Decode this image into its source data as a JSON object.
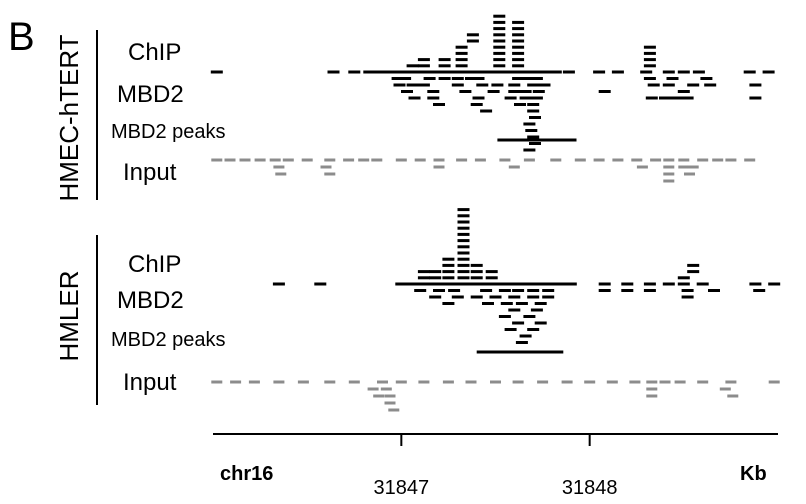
{
  "panel_label": "B",
  "groups": [
    {
      "cell_line": "HMEC-hTERT",
      "chip_label": [
        "ChIP",
        "MBD2"
      ],
      "peaks_label": "MBD2 peaks",
      "input_label": "Input",
      "peak_kb": [
        31847.51,
        31847.93
      ],
      "chip_reads": [
        [
          31846.02,
          0,
          21
        ],
        [
          31846.64,
          0,
          21
        ],
        [
          31846.75,
          0,
          21
        ],
        [
          31846.83,
          0,
          21
        ],
        [
          31846.88,
          0,
          21
        ],
        [
          31846.91,
          0,
          21
        ],
        [
          31846.95,
          0,
          21
        ],
        [
          31847.0,
          0,
          21
        ],
        [
          31847.04,
          0,
          21
        ],
        [
          31847.08,
          0,
          21
        ],
        [
          31847.12,
          0,
          21
        ],
        [
          31847.16,
          0,
          21
        ],
        [
          31847.2,
          0,
          21
        ],
        [
          31847.24,
          0,
          21
        ],
        [
          31847.28,
          0,
          21
        ],
        [
          31847.32,
          0,
          21
        ],
        [
          31847.36,
          0,
          21
        ],
        [
          31847.4,
          0,
          21
        ],
        [
          31847.44,
          0,
          21
        ],
        [
          31847.48,
          0,
          21
        ],
        [
          31847.52,
          0,
          21
        ],
        [
          31847.56,
          0,
          21
        ],
        [
          31847.6,
          0,
          21
        ],
        [
          31847.64,
          0,
          21
        ],
        [
          31847.68,
          0,
          21
        ],
        [
          31847.72,
          0,
          21
        ],
        [
          31847.76,
          0,
          21
        ],
        [
          31847.82,
          0,
          21
        ],
        [
          31847.89,
          0,
          21
        ],
        [
          31848.05,
          0,
          21
        ],
        [
          31848.15,
          0,
          21
        ],
        [
          31848.3,
          0,
          21
        ],
        [
          31848.42,
          0,
          21
        ],
        [
          31848.5,
          0,
          21
        ],
        [
          31848.58,
          0,
          21
        ],
        [
          31848.85,
          0,
          21
        ],
        [
          31848.95,
          0,
          21
        ],
        [
          31846.98,
          1,
          21
        ],
        [
          31847.02,
          1,
          21
        ],
        [
          31847.15,
          1,
          21
        ],
        [
          31847.23,
          1,
          21
        ],
        [
          31847.3,
          1,
          21
        ],
        [
          31847.37,
          1,
          21
        ],
        [
          31847.41,
          1,
          21
        ],
        [
          31847.62,
          1,
          21
        ],
        [
          31847.68,
          1,
          21
        ],
        [
          31847.72,
          1,
          21
        ],
        [
          31848.32,
          1,
          21
        ],
        [
          31848.44,
          1,
          21
        ],
        [
          31848.62,
          1,
          21
        ],
        [
          31846.99,
          2,
          21
        ],
        [
          31847.06,
          2,
          21
        ],
        [
          31847.12,
          2,
          21
        ],
        [
          31847.3,
          2,
          21
        ],
        [
          31847.43,
          2,
          21
        ],
        [
          31847.51,
          2,
          21
        ],
        [
          31847.6,
          2,
          21
        ],
        [
          31847.7,
          2,
          21
        ],
        [
          31847.76,
          2,
          21
        ],
        [
          31848.34,
          2,
          21
        ],
        [
          31848.42,
          2,
          21
        ],
        [
          31848.55,
          2,
          21
        ],
        [
          31848.64,
          2,
          21
        ],
        [
          31848.88,
          2,
          21
        ],
        [
          31847.03,
          3,
          21
        ],
        [
          31847.17,
          3,
          21
        ],
        [
          31847.34,
          3,
          21
        ],
        [
          31847.49,
          3,
          21
        ],
        [
          31847.6,
          3,
          21
        ],
        [
          31847.66,
          3,
          21
        ],
        [
          31847.73,
          3,
          21
        ],
        [
          31848.08,
          3,
          21
        ],
        [
          31848.5,
          3,
          21
        ],
        [
          31847.07,
          4,
          21
        ],
        [
          31847.17,
          4,
          21
        ],
        [
          31847.41,
          4,
          21
        ],
        [
          31847.58,
          4,
          21
        ],
        [
          31847.66,
          4,
          21
        ],
        [
          31847.72,
          4,
          21
        ],
        [
          31848.33,
          4,
          21
        ],
        [
          31848.4,
          4,
          21
        ],
        [
          31848.46,
          4,
          21
        ],
        [
          31848.52,
          4,
          21
        ],
        [
          31848.88,
          4,
          21
        ],
        [
          31847.2,
          5,
          21
        ],
        [
          31847.4,
          5,
          21
        ],
        [
          31847.63,
          5,
          21
        ],
        [
          31847.7,
          5,
          21
        ],
        [
          31847.45,
          6,
          21
        ],
        [
          31847.7,
          6,
          21
        ],
        [
          31847.71,
          7,
          21
        ],
        [
          31847.68,
          8,
          21
        ],
        [
          31847.69,
          9,
          21
        ],
        [
          31847.7,
          10,
          21
        ],
        [
          31847.71,
          11,
          21
        ],
        [
          31847.68,
          12,
          21
        ]
      ],
      "input_reads": [
        [
          31846.02,
          0,
          21
        ],
        [
          31846.09,
          0,
          21
        ],
        [
          31846.17,
          0,
          21
        ],
        [
          31846.25,
          0,
          21
        ],
        [
          31846.33,
          0,
          21
        ],
        [
          31846.4,
          0,
          21
        ],
        [
          31846.5,
          0,
          21
        ],
        [
          31846.62,
          0,
          21
        ],
        [
          31846.72,
          0,
          21
        ],
        [
          31846.8,
          0,
          21
        ],
        [
          31846.87,
          0,
          21
        ],
        [
          31847.0,
          0,
          21
        ],
        [
          31847.1,
          0,
          21
        ],
        [
          31847.2,
          0,
          21
        ],
        [
          31847.32,
          0,
          21
        ],
        [
          31847.42,
          0,
          21
        ],
        [
          31847.55,
          0,
          21
        ],
        [
          31847.68,
          0,
          21
        ],
        [
          31847.82,
          0,
          21
        ],
        [
          31847.95,
          0,
          21
        ],
        [
          31848.05,
          0,
          21
        ],
        [
          31848.15,
          0,
          21
        ],
        [
          31848.25,
          0,
          21
        ],
        [
          31848.35,
          0,
          21
        ],
        [
          31848.42,
          0,
          21
        ],
        [
          31848.5,
          0,
          21
        ],
        [
          31848.6,
          0,
          21
        ],
        [
          31848.68,
          0,
          21
        ],
        [
          31848.75,
          0,
          21
        ],
        [
          31848.85,
          0,
          21
        ],
        [
          31846.35,
          1,
          21
        ],
        [
          31846.6,
          1,
          21
        ],
        [
          31847.2,
          1,
          21
        ],
        [
          31847.6,
          1,
          21
        ],
        [
          31848.28,
          1,
          21
        ],
        [
          31848.42,
          1,
          21
        ],
        [
          31848.5,
          1,
          21
        ],
        [
          31848.55,
          1,
          21
        ],
        [
          31846.36,
          2,
          21
        ],
        [
          31846.62,
          2,
          21
        ],
        [
          31848.42,
          2,
          21
        ],
        [
          31848.53,
          2,
          21
        ],
        [
          31848.42,
          3,
          21
        ]
      ]
    },
    {
      "cell_line": "HMLER",
      "chip_label": [
        "ChIP",
        "MBD2"
      ],
      "peaks_label": "MBD2 peaks",
      "input_label": "Input",
      "peak_kb": [
        31847.4,
        31847.86
      ],
      "chip_reads": [
        [
          31846.35,
          0,
          21
        ],
        [
          31846.57,
          0,
          21
        ],
        [
          31847.0,
          0,
          21
        ],
        [
          31847.05,
          0,
          21
        ],
        [
          31847.1,
          0,
          21
        ],
        [
          31847.15,
          0,
          21
        ],
        [
          31847.2,
          0,
          21
        ],
        [
          31847.25,
          0,
          21
        ],
        [
          31847.3,
          0,
          21
        ],
        [
          31847.35,
          0,
          21
        ],
        [
          31847.4,
          0,
          21
        ],
        [
          31847.45,
          0,
          21
        ],
        [
          31847.5,
          0,
          21
        ],
        [
          31847.55,
          0,
          21
        ],
        [
          31847.6,
          0,
          21
        ],
        [
          31847.65,
          0,
          21
        ],
        [
          31847.7,
          0,
          21
        ],
        [
          31847.75,
          0,
          21
        ],
        [
          31847.8,
          0,
          21
        ],
        [
          31847.85,
          0,
          21
        ],
        [
          31847.9,
          0,
          21
        ],
        [
          31848.08,
          0,
          21
        ],
        [
          31848.2,
          0,
          21
        ],
        [
          31848.32,
          0,
          21
        ],
        [
          31848.42,
          0,
          21
        ],
        [
          31848.5,
          0,
          21
        ],
        [
          31848.6,
          0,
          21
        ],
        [
          31848.88,
          0,
          21
        ],
        [
          31848.98,
          0,
          21
        ],
        [
          31847.1,
          1,
          21
        ],
        [
          31847.2,
          1,
          21
        ],
        [
          31847.28,
          1,
          21
        ],
        [
          31847.45,
          1,
          21
        ],
        [
          31847.55,
          1,
          21
        ],
        [
          31847.62,
          1,
          21
        ],
        [
          31847.7,
          1,
          21
        ],
        [
          31847.78,
          1,
          21
        ],
        [
          31848.08,
          1,
          21
        ],
        [
          31848.2,
          1,
          21
        ],
        [
          31848.32,
          1,
          21
        ],
        [
          31848.52,
          1,
          21
        ],
        [
          31848.66,
          1,
          21
        ],
        [
          31848.9,
          1,
          21
        ],
        [
          31847.18,
          2,
          21
        ],
        [
          31847.3,
          2,
          21
        ],
        [
          31847.4,
          2,
          21
        ],
        [
          31847.5,
          2,
          21
        ],
        [
          31847.6,
          2,
          21
        ],
        [
          31847.7,
          2,
          21
        ],
        [
          31847.78,
          2,
          21
        ],
        [
          31848.52,
          2,
          21
        ],
        [
          31847.25,
          3,
          21
        ],
        [
          31847.46,
          3,
          21
        ],
        [
          31847.56,
          3,
          21
        ],
        [
          31847.64,
          3,
          21
        ],
        [
          31847.74,
          3,
          21
        ],
        [
          31847.6,
          4,
          21
        ],
        [
          31847.72,
          4,
          21
        ],
        [
          31847.55,
          5,
          21
        ],
        [
          31847.68,
          5,
          21
        ],
        [
          31847.62,
          6,
          21
        ],
        [
          31847.74,
          6,
          21
        ],
        [
          31847.58,
          7,
          21
        ],
        [
          31847.7,
          7,
          21
        ],
        [
          31847.66,
          8,
          21
        ],
        [
          31847.64,
          9,
          21
        ]
      ],
      "input_reads": [
        [
          31846.02,
          0,
          21
        ],
        [
          31846.12,
          0,
          21
        ],
        [
          31846.22,
          0,
          21
        ],
        [
          31846.35,
          0,
          21
        ],
        [
          31846.48,
          0,
          21
        ],
        [
          31846.62,
          0,
          21
        ],
        [
          31846.75,
          0,
          21
        ],
        [
          31846.9,
          0,
          21
        ],
        [
          31847.0,
          0,
          21
        ],
        [
          31847.12,
          0,
          21
        ],
        [
          31847.25,
          0,
          21
        ],
        [
          31847.37,
          0,
          21
        ],
        [
          31847.5,
          0,
          21
        ],
        [
          31847.62,
          0,
          21
        ],
        [
          31847.75,
          0,
          21
        ],
        [
          31847.88,
          0,
          21
        ],
        [
          31848.0,
          0,
          21
        ],
        [
          31848.12,
          0,
          21
        ],
        [
          31848.24,
          0,
          21
        ],
        [
          31848.33,
          0,
          21
        ],
        [
          31848.4,
          0,
          21
        ],
        [
          31848.48,
          0,
          21
        ],
        [
          31848.6,
          0,
          21
        ],
        [
          31848.75,
          0,
          21
        ],
        [
          31848.98,
          0,
          21
        ],
        [
          31846.85,
          1,
          21
        ],
        [
          31846.92,
          1,
          21
        ],
        [
          31848.33,
          1,
          21
        ],
        [
          31848.72,
          1,
          21
        ],
        [
          31846.88,
          2,
          21
        ],
        [
          31846.94,
          2,
          21
        ],
        [
          31848.33,
          2,
          21
        ],
        [
          31848.76,
          2,
          21
        ],
        [
          31846.94,
          3,
          21
        ],
        [
          31846.96,
          4,
          21
        ]
      ]
    }
  ],
  "axis": {
    "chrom": "chr16",
    "ticks": [
      31847,
      31848
    ],
    "unit": "Kb",
    "range": [
      31846.0,
      31849.0
    ]
  }
}
